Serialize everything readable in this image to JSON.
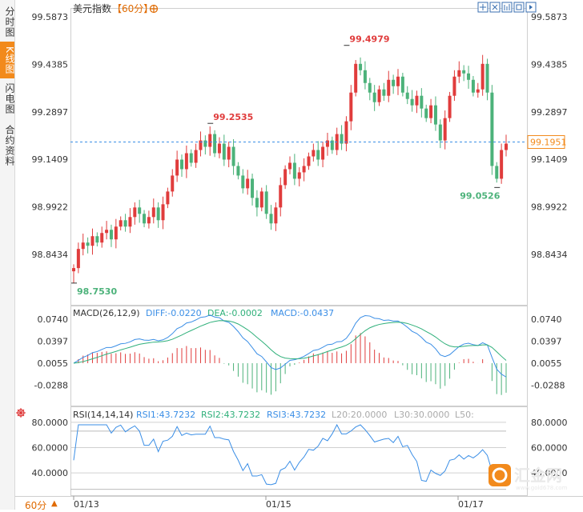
{
  "sidebar": {
    "tabs": [
      {
        "label": "分时图",
        "active": false
      },
      {
        "label": "K线图",
        "active": true
      },
      {
        "label": "闪电图",
        "active": false
      },
      {
        "label": "合约资料",
        "active": false
      }
    ]
  },
  "header": {
    "title": "美元指数",
    "period": "【60分】",
    "toolbar_icons": [
      "pan-icon",
      "zoom-icon",
      "chart-type-icon",
      "fullscreen-icon",
      "next-icon"
    ]
  },
  "footer": {
    "period": "60分",
    "watermark": "汇金网",
    "watermark_sub": "www.gold678.com"
  },
  "colors": {
    "up": "#e03c3c",
    "down": "#4cb27a",
    "diff": "#3a8ee6",
    "dea": "#2fb07a",
    "price_line": "#3a8ee6",
    "accent": "#f28a1c"
  },
  "chart_data": [
    {
      "type": "candlestick",
      "title": "美元指数",
      "y_ticks": [
        "99.5873",
        "99.4385",
        "99.2897",
        "99.1409",
        "98.9922",
        "98.8434"
      ],
      "ylim": [
        98.7,
        99.6
      ],
      "x_ticks": [
        "01/13",
        "01/15",
        "01/17"
      ],
      "current_price": "99.1951",
      "annotations": [
        {
          "label": "98.7530",
          "value": 98.753,
          "kind": "low"
        },
        {
          "label": "99.2535",
          "value": 99.2535,
          "kind": "high"
        },
        {
          "label": "99.4979",
          "value": 99.4979,
          "kind": "high"
        },
        {
          "label": "99.0526",
          "value": 99.0526,
          "kind": "low"
        }
      ],
      "closes": [
        98.8,
        98.86,
        98.88,
        98.87,
        98.9,
        98.88,
        98.91,
        98.92,
        98.89,
        98.93,
        98.95,
        98.93,
        98.96,
        98.99,
        98.97,
        98.94,
        98.96,
        98.99,
        98.95,
        99.0,
        99.04,
        99.09,
        99.14,
        99.11,
        99.16,
        99.13,
        99.17,
        99.2,
        99.18,
        99.22,
        99.16,
        99.19,
        99.14,
        99.18,
        99.12,
        99.09,
        99.05,
        99.08,
        99.02,
        98.99,
        99.04,
        98.97,
        98.94,
        98.99,
        99.06,
        99.11,
        99.13,
        99.08,
        99.1,
        99.12,
        99.15,
        99.17,
        99.14,
        99.18,
        99.2,
        99.17,
        99.22,
        99.19,
        99.26,
        99.35,
        99.44,
        99.42,
        99.38,
        99.35,
        99.32,
        99.36,
        99.34,
        99.39,
        99.37,
        99.4,
        99.35,
        99.33,
        99.31,
        99.34,
        99.3,
        99.27,
        99.31,
        99.25,
        99.2,
        99.27,
        99.34,
        99.4,
        99.42,
        99.41,
        99.39,
        99.35,
        99.36,
        99.44,
        99.35,
        99.12,
        99.08,
        99.17,
        99.19
      ]
    },
    {
      "type": "bar",
      "title": "MACD(26,12,9)",
      "legend": [
        "DIFF:-0.0220",
        "DEA:-0.0002",
        "MACD:-0.0437"
      ],
      "y_ticks": [
        "0.0740",
        "0.0397",
        "0.0055",
        "-0.0288"
      ],
      "ylim": [
        -0.058,
        0.09
      ]
    },
    {
      "type": "line",
      "title": "RSI(14,14,14)",
      "legend": [
        "RSI1:43.7232",
        "RSI2:43.7232",
        "RSI3:43.7232",
        "L20:20.0000",
        "L30:30.0000",
        "L50:"
      ],
      "y_ticks": [
        "80.0000",
        "60.0000",
        "40.0000"
      ],
      "ylim": [
        23,
        90
      ]
    }
  ]
}
